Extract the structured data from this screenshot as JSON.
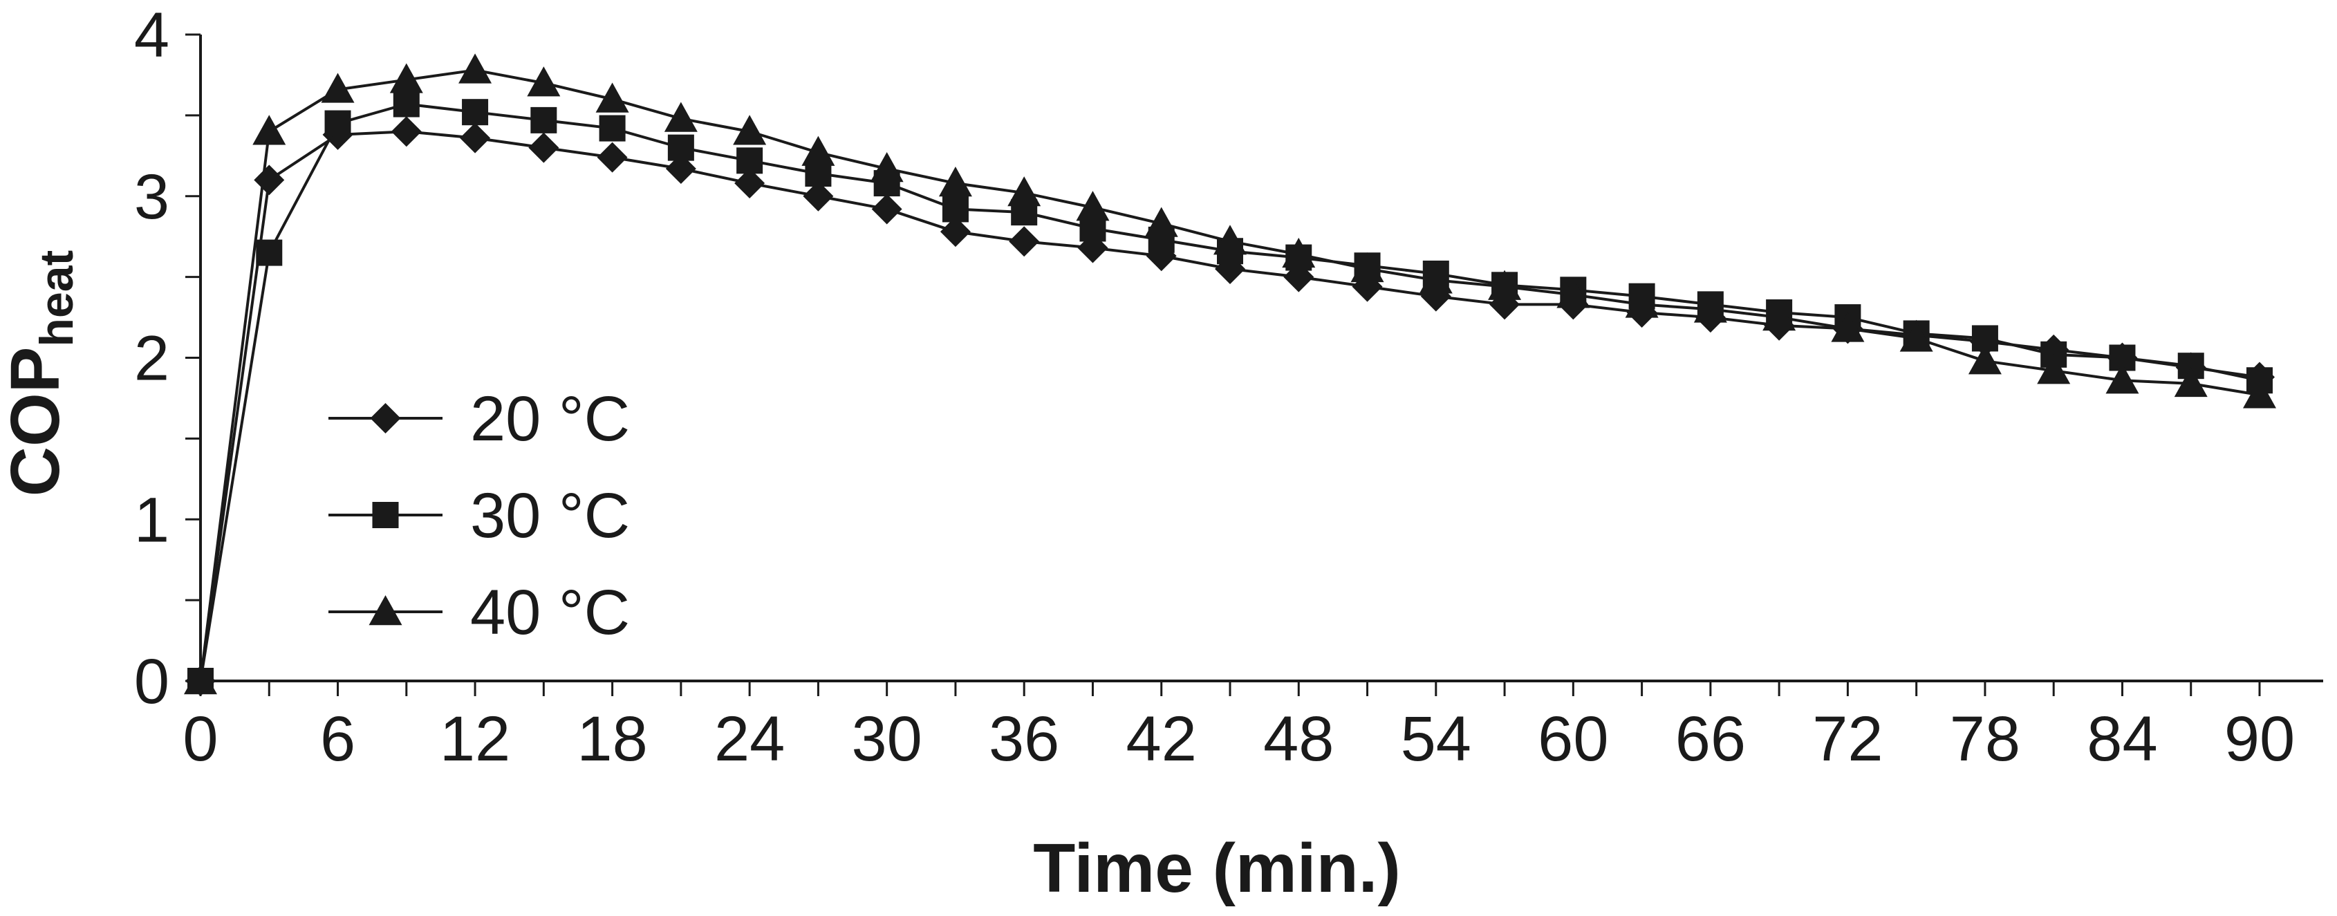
{
  "chart_data": {
    "type": "line",
    "title": "",
    "xlabel": "Time (min.)",
    "ylabel": {
      "main": "COP",
      "subscript": "heat"
    },
    "xlim": [
      0,
      90
    ],
    "ylim": [
      0,
      4
    ],
    "xticks": [
      "0",
      "6",
      "12",
      "18",
      "24",
      "30",
      "36",
      "42",
      "48",
      "54",
      "60",
      "66",
      "72",
      "78",
      "84",
      "90"
    ],
    "yticks": [
      "0",
      "1",
      "2",
      "3",
      "4"
    ],
    "grid": false,
    "legend_position": "center-left",
    "x": [
      0,
      3,
      6,
      9,
      12,
      15,
      18,
      21,
      24,
      27,
      30,
      33,
      36,
      39,
      42,
      45,
      48,
      51,
      54,
      57,
      60,
      63,
      66,
      69,
      72,
      75,
      78,
      81,
      84,
      87,
      90
    ],
    "series": [
      {
        "name": "20 °C",
        "marker": "diamond",
        "values": [
          0,
          3.1,
          3.38,
          3.4,
          3.36,
          3.3,
          3.24,
          3.17,
          3.08,
          3.0,
          2.92,
          2.78,
          2.72,
          2.68,
          2.63,
          2.55,
          2.5,
          2.44,
          2.38,
          2.33,
          2.33,
          2.28,
          2.25,
          2.2,
          2.18,
          2.14,
          2.1,
          2.05,
          2.0,
          1.94,
          1.88
        ]
      },
      {
        "name": "30 °C",
        "marker": "square",
        "values": [
          0,
          2.65,
          3.45,
          3.57,
          3.52,
          3.47,
          3.42,
          3.3,
          3.22,
          3.14,
          3.08,
          2.92,
          2.9,
          2.8,
          2.73,
          2.66,
          2.62,
          2.57,
          2.52,
          2.45,
          2.42,
          2.38,
          2.33,
          2.28,
          2.25,
          2.15,
          2.12,
          2.02,
          2.0,
          1.95,
          1.86
        ]
      },
      {
        "name": "40 °C",
        "marker": "triangle",
        "values": [
          0,
          3.4,
          3.66,
          3.72,
          3.78,
          3.7,
          3.6,
          3.48,
          3.4,
          3.27,
          3.17,
          3.08,
          3.02,
          2.93,
          2.83,
          2.72,
          2.64,
          2.55,
          2.48,
          2.44,
          2.39,
          2.33,
          2.3,
          2.25,
          2.18,
          2.12,
          1.98,
          1.92,
          1.86,
          1.84,
          1.77
        ]
      }
    ]
  },
  "colors": {
    "line": "#1a1a1a",
    "background": "#ffffff"
  }
}
